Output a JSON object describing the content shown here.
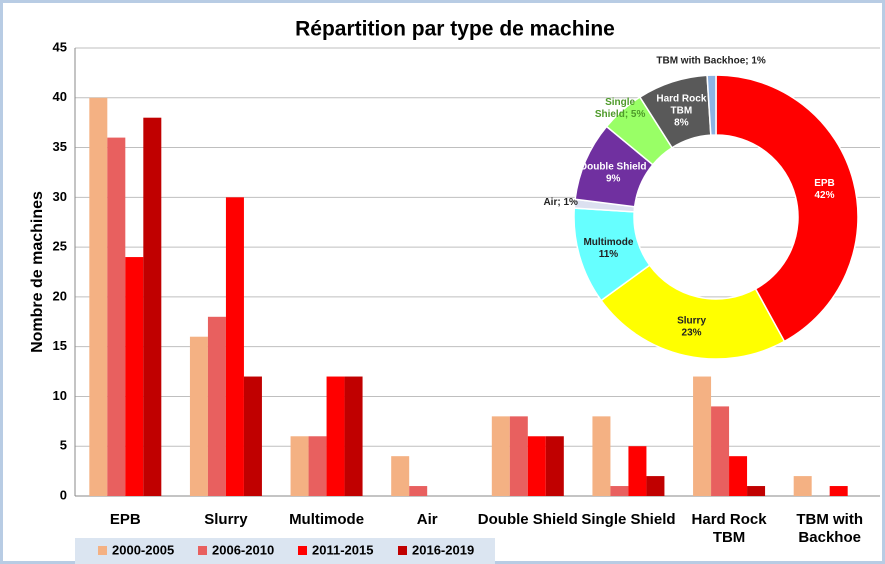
{
  "chart_data": [
    {
      "type": "bar",
      "title": "Répartition par type de machine",
      "y_label": "Nombre de machines",
      "categories": [
        "EPB",
        "Slurry",
        "Multimode",
        "Air",
        "Double Shield",
        "Single Shield",
        "Hard Rock\nTBM",
        "TBM with\nBackhoe"
      ],
      "series": [
        {
          "name": "2000-2005",
          "color": "#f4b183",
          "values": [
            40,
            16,
            6,
            4,
            8,
            8,
            12,
            2
          ]
        },
        {
          "name": "2006-2010",
          "color": "#e8605f",
          "values": [
            36,
            18,
            6,
            1,
            8,
            1,
            9,
            0
          ]
        },
        {
          "name": "2011-2015",
          "color": "#ff0000",
          "values": [
            24,
            30,
            12,
            0,
            6,
            5,
            4,
            1
          ]
        },
        {
          "name": "2016-2019",
          "color": "#c00000",
          "values": [
            38,
            12,
            12,
            0,
            6,
            2,
            1,
            0
          ]
        }
      ],
      "ylim": [
        0,
        45
      ],
      "yticks": [
        0,
        5,
        10,
        15,
        20,
        25,
        30,
        35,
        40,
        45
      ],
      "grid": true,
      "legend": "bottom"
    },
    {
      "type": "donut",
      "values": [
        42,
        23,
        11,
        1,
        9,
        5,
        8,
        1
      ],
      "value_labels": [
        "EPB\n42%",
        "Slurry\n23%",
        "Multimode\n11%",
        "Air; 1%",
        "Double Shield\n9%",
        "Single\nShield; 5%",
        "Hard Rock\nTBM\n8%",
        "TBM with Backhoe; 1%"
      ],
      "colors": [
        "#ff0000",
        "#ffff00",
        "#66ffff",
        "#dce0f0",
        "#7030a0",
        "#99ff66",
        "#595959",
        "#8db3e2"
      ]
    }
  ]
}
